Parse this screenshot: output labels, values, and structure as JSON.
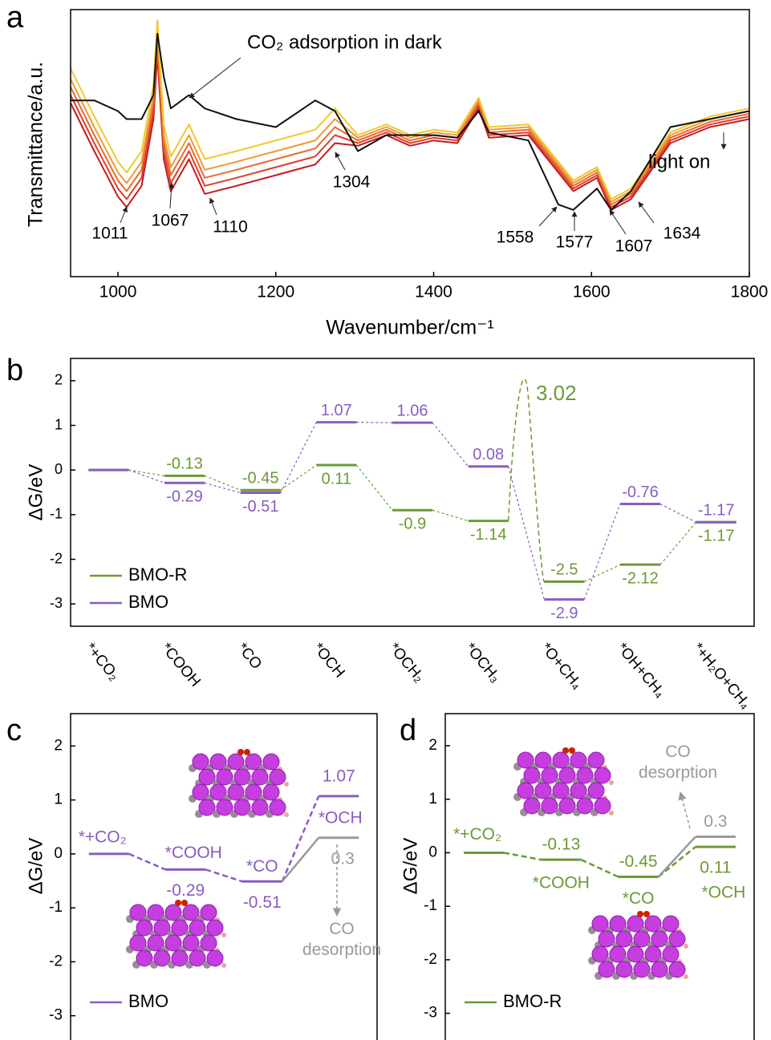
{
  "chart_data": [
    {
      "type": "line",
      "panel": "a",
      "ylabel": "Transmittance/a.u.",
      "xlabel": "Wavenumber/cm⁻¹",
      "x": [
        940,
        970,
        1000,
        1011,
        1030,
        1045,
        1050,
        1058,
        1067,
        1090,
        1110,
        1150,
        1200,
        1250,
        1275,
        1304,
        1340,
        1370,
        1400,
        1430,
        1457,
        1470,
        1520,
        1558,
        1577,
        1607,
        1625,
        1650,
        1700,
        1750,
        1800
      ],
      "xlim": [
        940,
        1800
      ],
      "xticks": [
        1000,
        1200,
        1400,
        1600,
        1800
      ],
      "ylim": [
        0,
        100
      ],
      "series": [
        {
          "color": "#111111",
          "values": [
            66,
            66,
            62,
            59,
            59,
            68,
            91,
            75,
            63,
            68,
            63,
            59,
            56,
            66,
            62,
            47,
            53,
            53,
            53,
            52,
            62,
            54,
            51,
            27,
            25,
            33,
            25,
            32,
            56,
            59,
            62
          ]
        },
        {
          "color": "#f2c72e",
          "values": [
            78,
            60,
            43,
            39,
            47,
            72,
            96,
            57,
            45,
            57,
            44,
            47,
            51,
            55,
            63,
            53,
            57,
            53,
            55,
            54,
            67,
            56,
            57,
            43,
            36,
            41,
            29,
            33,
            54,
            60,
            63
          ]
        },
        {
          "color": "#ec9a35",
          "values": [
            74,
            56,
            39,
            35,
            43,
            68,
            92,
            53,
            41,
            53,
            40,
            43,
            47,
            51,
            59,
            52,
            56,
            52,
            54,
            53,
            66,
            55,
            56,
            42,
            35,
            40,
            28,
            32,
            53,
            59,
            62
          ]
        },
        {
          "color": "#e76a2e",
          "values": [
            71,
            53,
            36,
            32,
            40,
            65,
            89,
            50,
            38,
            50,
            37,
            40,
            44,
            48,
            56,
            51,
            55,
            51,
            53,
            52,
            65,
            54,
            55,
            41,
            34,
            39,
            27,
            31,
            52,
            58,
            61
          ]
        },
        {
          "color": "#de3d2a",
          "values": [
            68,
            50,
            33,
            29,
            37,
            62,
            86,
            47,
            35,
            47,
            34,
            37,
            41,
            45,
            53,
            50,
            54,
            50,
            52,
            51,
            64,
            53,
            54,
            40,
            33,
            38,
            26,
            30,
            51,
            57,
            60
          ]
        },
        {
          "color": "#c41a1e",
          "values": [
            65,
            47,
            30,
            26,
            34,
            59,
            83,
            44,
            32,
            44,
            31,
            34,
            38,
            42,
            50,
            49,
            53,
            49,
            51,
            50,
            63,
            52,
            53,
            39,
            32,
            37,
            25,
            29,
            50,
            56,
            59
          ]
        }
      ],
      "annotations": [
        "CO₂ adsorption in dark",
        "light on"
      ],
      "peak_labels": [
        "1011",
        "1067",
        "1110",
        "1304",
        "1558",
        "1577",
        "1607",
        "1634"
      ]
    },
    {
      "type": "energy",
      "panel": "b",
      "ylabel": "ΔG/eV",
      "categories": [
        "*+CO₂",
        "*COOH",
        "*CO",
        "*OCH",
        "*OCH₂",
        "*OCH₃",
        "*O+CH₄",
        "*OH+CH₄",
        "*+H₂O+CH₄"
      ],
      "ylim": [
        -3.5,
        2.5
      ],
      "yticks": [
        -3,
        -2,
        -1,
        0,
        1,
        2
      ],
      "legend": "lower left",
      "series": [
        {
          "name": "BMO-R",
          "color": "#6b9a34",
          "values": [
            0,
            -0.13,
            -0.45,
            0.11,
            -0.9,
            -1.14,
            -2.5,
            -2.12,
            -1.17
          ],
          "value_labels": [
            null,
            "-0.13",
            "-0.45",
            "0.11",
            "-0.9",
            "-1.14",
            "-2.5",
            "-2.12",
            "-1.17"
          ]
        },
        {
          "name": "BMO",
          "color": "#8a5cc0",
          "values": [
            0,
            -0.29,
            -0.51,
            1.07,
            1.06,
            0.08,
            -2.9,
            -0.76,
            -1.17
          ],
          "value_labels": [
            null,
            "-0.29",
            "-0.51",
            "1.07",
            "1.06",
            "0.08",
            "-2.9",
            "-0.76",
            "-1.17"
          ]
        }
      ],
      "annotation": "3.02"
    },
    {
      "type": "energy",
      "panel": "c",
      "ylabel": "ΔG/eV",
      "categories": [
        "*+CO₂",
        "*COOH",
        "*CO",
        "*OCH"
      ],
      "ylim": [
        -3.45,
        2.6
      ],
      "yticks": [
        -3,
        -2,
        -1,
        0,
        1,
        2
      ],
      "legend": "lower left",
      "series": [
        {
          "name": "BMO",
          "color": "#8a5cc0",
          "values": [
            0,
            -0.29,
            -0.51,
            1.07
          ],
          "value_labels": [
            null,
            "-0.29",
            "-0.51",
            "1.07"
          ]
        },
        {
          "color": "#999999",
          "values": [
            null,
            null,
            null,
            0.3
          ],
          "value_labels": [
            null,
            null,
            null,
            "0.3"
          ],
          "annotation": "CO desorption"
        }
      ]
    },
    {
      "type": "energy",
      "panel": "d",
      "ylabel": "ΔG/eV",
      "categories": [
        "*+CO₂",
        "*COOH",
        "*CO",
        "*OCH"
      ],
      "ylim": [
        -3.5,
        2.6
      ],
      "yticks": [
        -3,
        -2,
        -1,
        0,
        1,
        2
      ],
      "legend": "lower left",
      "series": [
        {
          "name": "BMO-R",
          "color": "#6b9a34",
          "values": [
            0,
            -0.13,
            -0.45,
            0.11
          ],
          "value_labels": [
            null,
            "-0.13",
            "-0.45",
            "0.11"
          ]
        },
        {
          "color": "#999999",
          "values": [
            null,
            null,
            null,
            0.3
          ],
          "value_labels": [
            null,
            null,
            null,
            "0.3"
          ],
          "annotation": "CO desorption"
        }
      ]
    }
  ]
}
